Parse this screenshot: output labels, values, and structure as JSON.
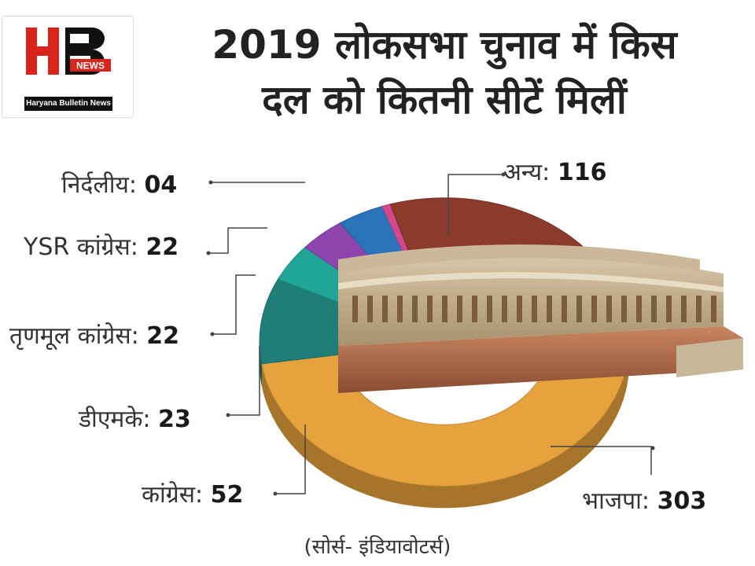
{
  "logo": {
    "letters": "HB",
    "badge": "NEWS",
    "caption": "Haryana Bulletin News"
  },
  "title": {
    "line1": "2019 लोकसभा चुनाव में किस",
    "line2": "दल को कितनी सीटें मिलीं"
  },
  "source": "(सोर्स- इंडियावोटर्स)",
  "colors": {
    "bjp": "#e6a23c",
    "congress": "#2a8a7e",
    "dmk": "#23a99a",
    "tmc": "#8e44ad",
    "ysr": "#2b73b9",
    "independent": "#d4488c",
    "others": "#8b3a2b"
  },
  "chart_data": {
    "type": "pie",
    "style": "3d-donut",
    "slices": [
      {
        "label": "भाजपा:",
        "value": 303,
        "display": "303",
        "color": "#e6a23c"
      },
      {
        "label": "कांग्रेस:",
        "value": 52,
        "display": "52",
        "color": "#1f7f78"
      },
      {
        "label": "डीएमके:",
        "value": 23,
        "display": "23",
        "color": "#21a596"
      },
      {
        "label": "तृणमूल कांग्रेस:",
        "value": 22,
        "display": "22",
        "color": "#8e44ad"
      },
      {
        "label": "YSR कांग्रेस:",
        "value": 22,
        "display": "22",
        "color": "#2b73b9"
      },
      {
        "label": "निर्दलीय:",
        "value": 4,
        "display": "04",
        "color": "#d4488c"
      },
      {
        "label": "अन्य:",
        "value": 116,
        "display": "116",
        "color": "#8b3a2b"
      }
    ]
  }
}
